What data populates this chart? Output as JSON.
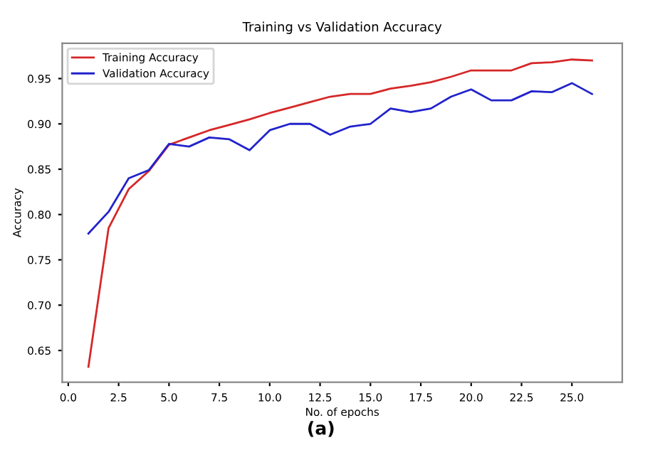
{
  "chart_data": {
    "type": "line",
    "title": "Training vs Validation Accuracy",
    "xlabel": "No. of epochs",
    "ylabel": "Accuracy",
    "x": [
      1,
      2,
      3,
      4,
      5,
      6,
      7,
      8,
      9,
      10,
      11,
      12,
      13,
      14,
      15,
      16,
      17,
      18,
      19,
      20,
      21,
      22,
      23,
      24,
      25,
      26
    ],
    "series": [
      {
        "name": "Training Accuracy",
        "color": "#d62728",
        "values": [
          0.632,
          0.785,
          0.828,
          0.848,
          0.877,
          0.885,
          0.893,
          0.899,
          0.905,
          0.912,
          0.918,
          0.924,
          0.93,
          0.933,
          0.933,
          0.939,
          0.942,
          0.946,
          0.952,
          0.959,
          0.959,
          0.959,
          0.967,
          0.968,
          0.971,
          0.97
        ]
      },
      {
        "name": "Validation Accuracy",
        "color": "#2222cc",
        "values": [
          0.779,
          0.803,
          0.84,
          0.849,
          0.878,
          0.875,
          0.885,
          0.883,
          0.871,
          0.893,
          0.9,
          0.9,
          0.888,
          0.897,
          0.9,
          0.917,
          0.913,
          0.917,
          0.93,
          0.938,
          0.926,
          0.926,
          0.936,
          0.935,
          0.945,
          0.933
        ]
      }
    ],
    "xlim": [
      -0.3,
      27.5
    ],
    "xticks": [
      {
        "value": 0,
        "label": "0.0"
      },
      2.5,
      {
        "value": 5,
        "label": "5.0"
      },
      7.5,
      {
        "value": 10,
        "label": "10.0"
      },
      12.5,
      {
        "value": 15,
        "label": "15.0"
      },
      17.5,
      {
        "value": 20,
        "label": "20.0"
      },
      22.5,
      {
        "value": 25,
        "label": "25.0"
      }
    ],
    "ylim": [
      0.615,
      0.989
    ],
    "yticks": [
      0.65,
      {
        "value": 0.7,
        "label": "0.70"
      },
      0.75,
      {
        "value": 0.8,
        "label": "0.80"
      },
      0.85,
      {
        "value": 0.9,
        "label": "0.90"
      },
      0.95
    ],
    "grid": false,
    "legend": "top left",
    "marker": "none",
    "line_style": "solid",
    "annotations": [
      "(a)"
    ]
  }
}
